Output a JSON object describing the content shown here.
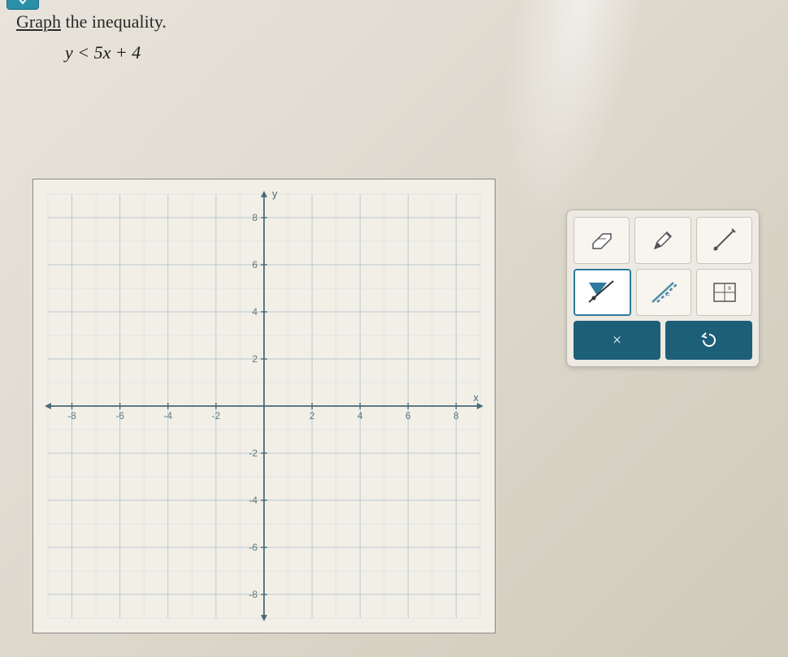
{
  "question": {
    "instruction_prefix": "Graph",
    "instruction_suffix": " the inequality.",
    "equation": "y < 5x + 4"
  },
  "graph": {
    "type": "coordinate-plane",
    "x_axis_label": "x",
    "y_axis_label": "y",
    "xlim": [
      -9,
      9
    ],
    "ylim": [
      -9,
      9
    ],
    "xtick_labels": [
      "-8",
      "-6",
      "-4",
      "-2",
      "2",
      "4",
      "6",
      "8"
    ],
    "xtick_values": [
      -8,
      -6,
      -4,
      -2,
      2,
      4,
      6,
      8
    ],
    "ytick_labels": [
      "8",
      "6",
      "4",
      "2",
      "-2",
      "-4",
      "-6",
      "-8"
    ],
    "ytick_values": [
      8,
      6,
      4,
      2,
      -2,
      -4,
      -6,
      -8
    ],
    "grid_step": 1,
    "background_color": "#f2efe6",
    "grid_minor_color": "#d9e2e6",
    "grid_major_color": "#b9c9d0",
    "axis_color": "#4a6a78",
    "tick_label_color": "#5a7a88",
    "tick_label_fontsize": 12,
    "axis_label_fontsize": 13
  },
  "tools": {
    "eraser": "eraser-icon",
    "pencil": "pencil-icon",
    "line": "line-icon",
    "fill": "fill-region-icon",
    "dash_line": "dashed-line-icon",
    "table": "no-solution-icon"
  },
  "actions": {
    "clear": "×",
    "undo": "↺"
  },
  "colors": {
    "palette_bg": "#eceae2",
    "tool_bg": "#f7f5ee",
    "tool_border": "#c9c6bb",
    "action_bg": "#1e5f78",
    "accent": "#2d7a9c"
  }
}
